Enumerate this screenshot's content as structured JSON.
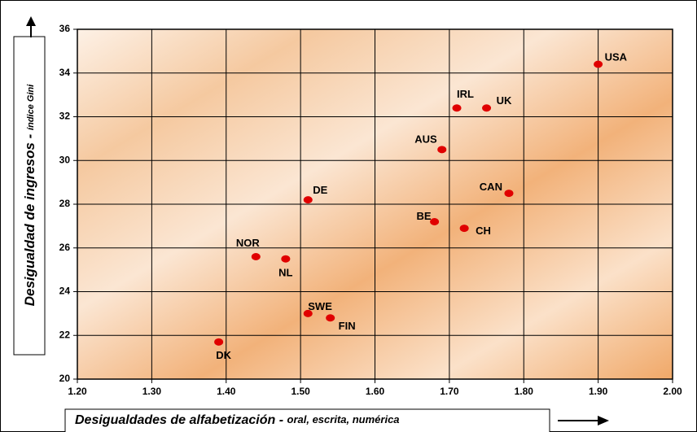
{
  "chart_data": {
    "type": "scatter",
    "x_label": "Desigualdades de alfabetización - ",
    "x_label_detail": "oral, escrita, numérica",
    "y_label": "Desigualdad de ingresos - ",
    "y_label_detail": "índice Gini",
    "series": [
      {
        "name": null,
        "color": "#e00000",
        "labels": [
          "USA",
          "IRL",
          "UK",
          "AUS",
          "CAN",
          "DE",
          "BE",
          "CH",
          "NOR",
          "NL",
          "SWE",
          "FIN",
          "DK"
        ],
        "x": [
          1.9,
          1.71,
          1.75,
          1.69,
          1.78,
          1.51,
          1.68,
          1.72,
          1.44,
          1.48,
          1.51,
          1.54,
          1.39
        ],
        "values": [
          34.4,
          32.4,
          32.4,
          30.5,
          28.5,
          28.2,
          27.2,
          26.9,
          25.6,
          25.5,
          23.0,
          22.8,
          21.7
        ]
      }
    ],
    "xlim": [
      1.2,
      2.0
    ],
    "xticks": [
      {
        "value": 1.2,
        "label": "1.20"
      },
      {
        "value": 1.3,
        "label": "1.30"
      },
      {
        "value": 1.4,
        "label": "1.40"
      },
      {
        "value": 1.5,
        "label": "1.50"
      },
      {
        "value": 1.6,
        "label": "1.60"
      },
      {
        "value": 1.7,
        "label": "1.70"
      },
      {
        "value": 1.8,
        "label": "1.80"
      },
      {
        "value": 1.9,
        "label": "1.90"
      },
      {
        "value": 2.0,
        "label": "2.00"
      }
    ],
    "ylim": [
      20,
      36
    ],
    "yticks": [
      20,
      22,
      24,
      26,
      28,
      30,
      32,
      34,
      36
    ],
    "grid": true
  }
}
